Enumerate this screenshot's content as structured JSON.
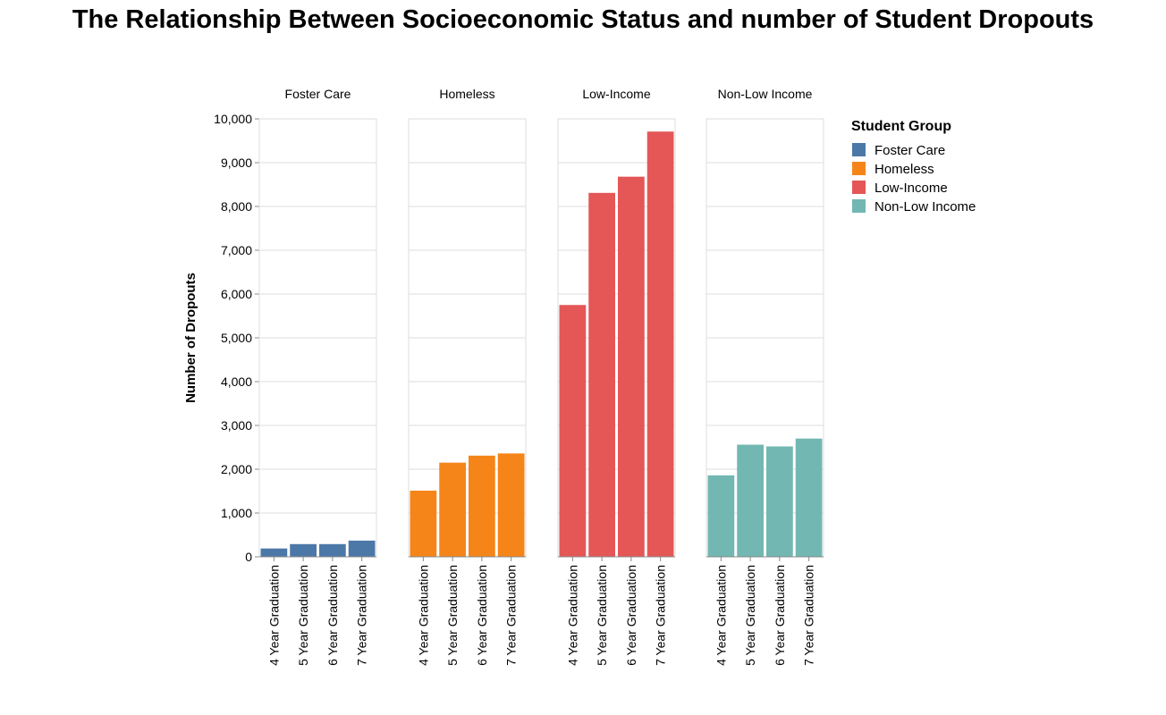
{
  "chart_data": {
    "type": "bar",
    "title": "The Relationship Between Socioeconomic Status and number of Student Dropouts",
    "ylabel": "Number of Dropouts",
    "xlabel": "",
    "ylim": [
      0,
      10000
    ],
    "yticks": [
      0,
      1000,
      2000,
      3000,
      4000,
      5000,
      6000,
      7000,
      8000,
      9000,
      10000
    ],
    "grid": true,
    "categories": [
      "4 Year Graduation",
      "5 Year Graduation",
      "6 Year Graduation",
      "7 Year Graduation"
    ],
    "facets": [
      {
        "name": "Foster Care",
        "color": "#4c78a8",
        "values": [
          190,
          290,
          290,
          370
        ]
      },
      {
        "name": "Homeless",
        "color": "#f58518",
        "values": [
          1510,
          2150,
          2310,
          2360
        ]
      },
      {
        "name": "Low-Income",
        "color": "#e45756",
        "values": [
          5750,
          8310,
          8680,
          9710
        ]
      },
      {
        "name": "Non-Low Income",
        "color": "#72b7b2",
        "values": [
          1860,
          2560,
          2520,
          2700
        ]
      }
    ],
    "legend": {
      "title": "Student Group",
      "placement": "right",
      "items": [
        "Foster Care",
        "Homeless",
        "Low-Income",
        "Non-Low Income"
      ]
    }
  }
}
